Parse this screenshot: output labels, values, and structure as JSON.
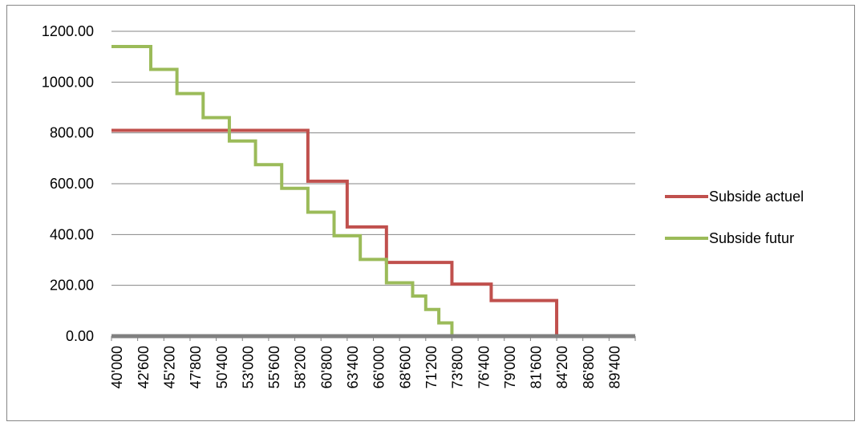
{
  "chart_data": {
    "type": "line",
    "title": "",
    "xlabel": "",
    "ylabel": "",
    "ylim": [
      0,
      1200
    ],
    "grid": "horizontal",
    "legend_position": "right",
    "y_ticks": [
      "0.00",
      "200.00",
      "400.00",
      "600.00",
      "800.00",
      "1000.00",
      "1200.00"
    ],
    "x_ticks": [
      "40'000",
      "42'600",
      "45'200",
      "47'800",
      "50'400",
      "53'000",
      "55'600",
      "58'200",
      "60'800",
      "63'400",
      "66'000",
      "68'600",
      "71'200",
      "73'800",
      "76'400",
      "79'000",
      "81'600",
      "84'200",
      "86'800",
      "89'400"
    ],
    "x": [
      40000,
      41300,
      42600,
      43900,
      45200,
      46500,
      47800,
      49100,
      50400,
      51700,
      53000,
      54300,
      55600,
      56900,
      58200,
      59500,
      60800,
      62100,
      63400,
      64700,
      66000,
      67300,
      68600,
      69900,
      71200,
      72500,
      73800,
      75100,
      76400,
      77700,
      79000,
      80300,
      81600,
      82900,
      84200,
      85500,
      86800,
      88100,
      89400,
      90700
    ],
    "series": [
      {
        "name": "Subside actuel",
        "color": "#c0504d",
        "values": [
          810,
          810,
          810,
          810,
          810,
          810,
          810,
          810,
          810,
          810,
          810,
          810,
          810,
          810,
          810,
          610,
          610,
          610,
          430,
          430,
          430,
          290,
          290,
          290,
          290,
          290,
          205,
          205,
          205,
          140,
          140,
          140,
          140,
          140,
          0,
          0,
          0,
          0,
          0,
          0
        ]
      },
      {
        "name": "Subside futur",
        "color": "#9bbb59",
        "values": [
          1140,
          1140,
          1140,
          1050,
          1050,
          955,
          955,
          860,
          860,
          768,
          768,
          675,
          675,
          582,
          582,
          488,
          488,
          395,
          395,
          302,
          302,
          210,
          210,
          158,
          105,
          52,
          0,
          0,
          0,
          0,
          0,
          0,
          0,
          0,
          0,
          0,
          0,
          0,
          0,
          0
        ]
      }
    ],
    "axis_color": "#808080",
    "grid_color": "#868686"
  }
}
